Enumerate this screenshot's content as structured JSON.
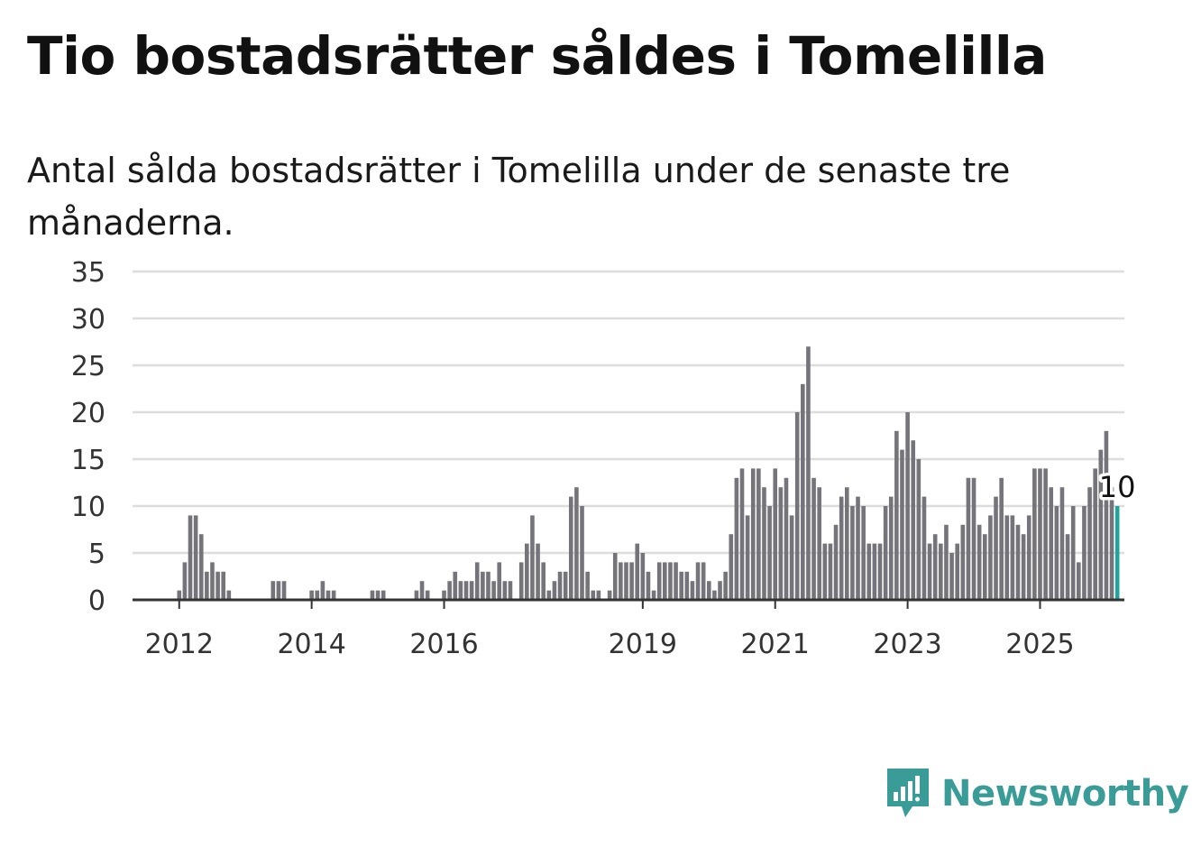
{
  "colors": {
    "bar": "#75747b",
    "highlight": "#1fa39a",
    "grid": "#dddddd",
    "axis": "#333333",
    "brand": "#3a9c97"
  },
  "brand": {
    "name": "Newsworthy",
    "icon": "bar-chart-speech-bubble-icon"
  },
  "chart_data": {
    "type": "bar",
    "title": "Tio bostadsrätter såldes i Tomelilla",
    "subtitle": "Antal sålda bostadsrätter i Tomelilla under de senaste tre månaderna.",
    "xlabel": "",
    "ylabel": "",
    "ylim": [
      0,
      35
    ],
    "yticks": [
      0,
      5,
      10,
      15,
      20,
      25,
      30,
      35
    ],
    "grid": true,
    "start": "2011-05",
    "frequency": "monthly",
    "xticks": [
      "2012",
      "2014",
      "2016",
      "2019",
      "2021",
      "2023",
      "2025"
    ],
    "values": [
      0,
      0,
      0,
      0,
      0,
      0,
      0,
      0,
      1,
      4,
      9,
      9,
      7,
      3,
      4,
      3,
      3,
      1,
      0,
      0,
      0,
      0,
      0,
      0,
      0,
      2,
      2,
      2,
      0,
      0,
      0,
      0,
      1,
      1,
      2,
      1,
      1,
      0,
      0,
      0,
      0,
      0,
      0,
      1,
      1,
      1,
      0,
      0,
      0,
      0,
      0,
      1,
      2,
      1,
      0,
      0,
      1,
      2,
      3,
      2,
      2,
      2,
      4,
      3,
      3,
      2,
      4,
      2,
      2,
      0,
      4,
      6,
      9,
      6,
      4,
      1,
      2,
      3,
      3,
      11,
      12,
      10,
      3,
      1,
      1,
      0,
      1,
      5,
      4,
      4,
      4,
      6,
      5,
      3,
      1,
      4,
      4,
      4,
      4,
      3,
      3,
      2,
      4,
      4,
      2,
      1,
      2,
      3,
      7,
      13,
      14,
      9,
      14,
      14,
      12,
      10,
      14,
      12,
      13,
      9,
      20,
      23,
      27,
      13,
      12,
      6,
      6,
      8,
      11,
      12,
      10,
      11,
      10,
      6,
      6,
      6,
      10,
      11,
      18,
      16,
      20,
      17,
      15,
      11,
      6,
      7,
      6,
      8,
      5,
      6,
      8,
      13,
      13,
      8,
      7,
      9,
      11,
      13,
      9,
      9,
      8,
      7,
      9,
      14,
      14,
      14,
      12,
      10,
      12,
      7,
      10,
      4,
      10,
      12,
      14,
      16,
      18,
      12,
      10
    ],
    "highlight_last": true,
    "annotation": {
      "text": "10"
    }
  }
}
